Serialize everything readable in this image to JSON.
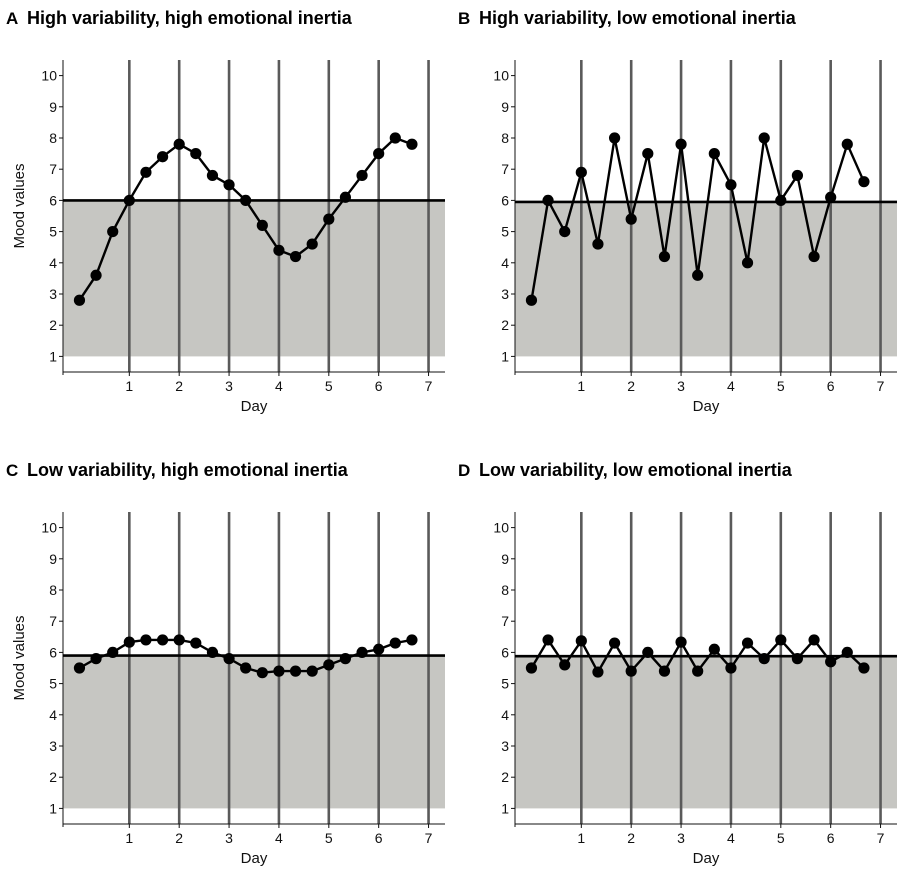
{
  "chart_data": [
    {
      "type": "line",
      "panel_letter": "A",
      "title": "High variability, high emotional inertia",
      "xlabel": "Day",
      "ylabel": "Mood values",
      "xlim": [
        -0.33,
        7.33
      ],
      "ylim": [
        0.5,
        10.5
      ],
      "xticks": [
        "1",
        "2",
        "3",
        "4",
        "5",
        "6",
        "7"
      ],
      "yticks": [
        "1",
        "2",
        "3",
        "4",
        "5",
        "6",
        "7",
        "8",
        "9",
        "10"
      ],
      "day_lines": [
        1,
        2,
        3,
        4,
        5,
        6,
        7
      ],
      "mean": 6.0,
      "band": [
        1,
        6.0
      ],
      "band_color": "#c6c6c2",
      "x": [
        0,
        0.333,
        0.667,
        1.0,
        1.333,
        1.667,
        2.0,
        2.333,
        2.667,
        3.0,
        3.333,
        3.667,
        4.0,
        4.333,
        4.667,
        5.0,
        5.333,
        5.667,
        6.0,
        6.333,
        6.667
      ],
      "y": [
        2.8,
        3.6,
        5.0,
        6.0,
        6.9,
        7.4,
        7.8,
        7.5,
        6.8,
        6.5,
        6.0,
        5.2,
        4.4,
        4.2,
        4.6,
        5.4,
        6.1,
        6.8,
        7.5,
        8.0,
        7.8
      ]
    },
    {
      "type": "line",
      "panel_letter": "B",
      "title": "High variability, low emotional inertia",
      "xlabel": "Day",
      "ylabel": "",
      "xlim": [
        -0.33,
        7.33
      ],
      "ylim": [
        0.5,
        10.5
      ],
      "xticks": [
        "1",
        "2",
        "3",
        "4",
        "5",
        "6",
        "7"
      ],
      "yticks": [
        "1",
        "2",
        "3",
        "4",
        "5",
        "6",
        "7",
        "8",
        "9",
        "10"
      ],
      "day_lines": [
        1,
        2,
        3,
        4,
        5,
        6,
        7
      ],
      "mean": 5.95,
      "band": [
        1,
        5.95
      ],
      "band_color": "#c6c6c2",
      "x": [
        0,
        0.333,
        0.667,
        1.0,
        1.333,
        1.667,
        2.0,
        2.333,
        2.667,
        3.0,
        3.333,
        3.667,
        4.0,
        4.333,
        4.667,
        5.0,
        5.333,
        5.667,
        6.0,
        6.333,
        6.667
      ],
      "y": [
        2.8,
        6.0,
        5.0,
        6.9,
        4.6,
        8.0,
        5.4,
        7.5,
        4.2,
        7.8,
        3.6,
        7.5,
        6.5,
        4.0,
        8.0,
        6.0,
        6.8,
        4.2,
        6.1,
        7.8,
        6.6
      ]
    },
    {
      "type": "line",
      "panel_letter": "C",
      "title": "Low variability, high emotional inertia",
      "xlabel": "Day",
      "ylabel": "Mood values",
      "xlim": [
        -0.33,
        7.33
      ],
      "ylim": [
        0.5,
        10.5
      ],
      "xticks": [
        "1",
        "2",
        "3",
        "4",
        "5",
        "6",
        "7"
      ],
      "yticks": [
        "1",
        "2",
        "3",
        "4",
        "5",
        "6",
        "7",
        "8",
        "9",
        "10"
      ],
      "day_lines": [
        1,
        2,
        3,
        4,
        5,
        6,
        7
      ],
      "mean": 5.9,
      "band": [
        1,
        5.9
      ],
      "band_color": "#c6c6c2",
      "x": [
        0,
        0.333,
        0.667,
        1.0,
        1.333,
        1.667,
        2.0,
        2.333,
        2.667,
        3.0,
        3.333,
        3.667,
        4.0,
        4.333,
        4.667,
        5.0,
        5.333,
        5.667,
        6.0,
        6.333,
        6.667
      ],
      "y": [
        5.5,
        5.8,
        6.0,
        6.33,
        6.4,
        6.4,
        6.4,
        6.3,
        6.0,
        5.8,
        5.5,
        5.35,
        5.4,
        5.4,
        5.4,
        5.6,
        5.8,
        6.0,
        6.1,
        6.3,
        6.4
      ]
    },
    {
      "type": "line",
      "panel_letter": "D",
      "title": "Low variability, low emotional inertia",
      "xlabel": "Day",
      "ylabel": "",
      "xlim": [
        -0.33,
        7.33
      ],
      "ylim": [
        0.5,
        10.5
      ],
      "xticks": [
        "1",
        "2",
        "3",
        "4",
        "5",
        "6",
        "7"
      ],
      "yticks": [
        "1",
        "2",
        "3",
        "4",
        "5",
        "6",
        "7",
        "8",
        "9",
        "10"
      ],
      "day_lines": [
        1,
        2,
        3,
        4,
        5,
        6,
        7
      ],
      "mean": 5.88,
      "band": [
        1,
        5.88
      ],
      "band_color": "#c6c6c2",
      "x": [
        0,
        0.333,
        0.667,
        1.0,
        1.333,
        1.667,
        2.0,
        2.333,
        2.667,
        3.0,
        3.333,
        3.667,
        4.0,
        4.333,
        4.667,
        5.0,
        5.333,
        5.667,
        6.0,
        6.333,
        6.667
      ],
      "y": [
        5.5,
        6.4,
        5.6,
        6.37,
        5.37,
        6.3,
        5.4,
        6.0,
        5.4,
        6.33,
        5.4,
        6.1,
        5.5,
        6.3,
        5.8,
        6.4,
        5.8,
        6.4,
        5.7,
        6.0,
        5.5
      ]
    }
  ]
}
